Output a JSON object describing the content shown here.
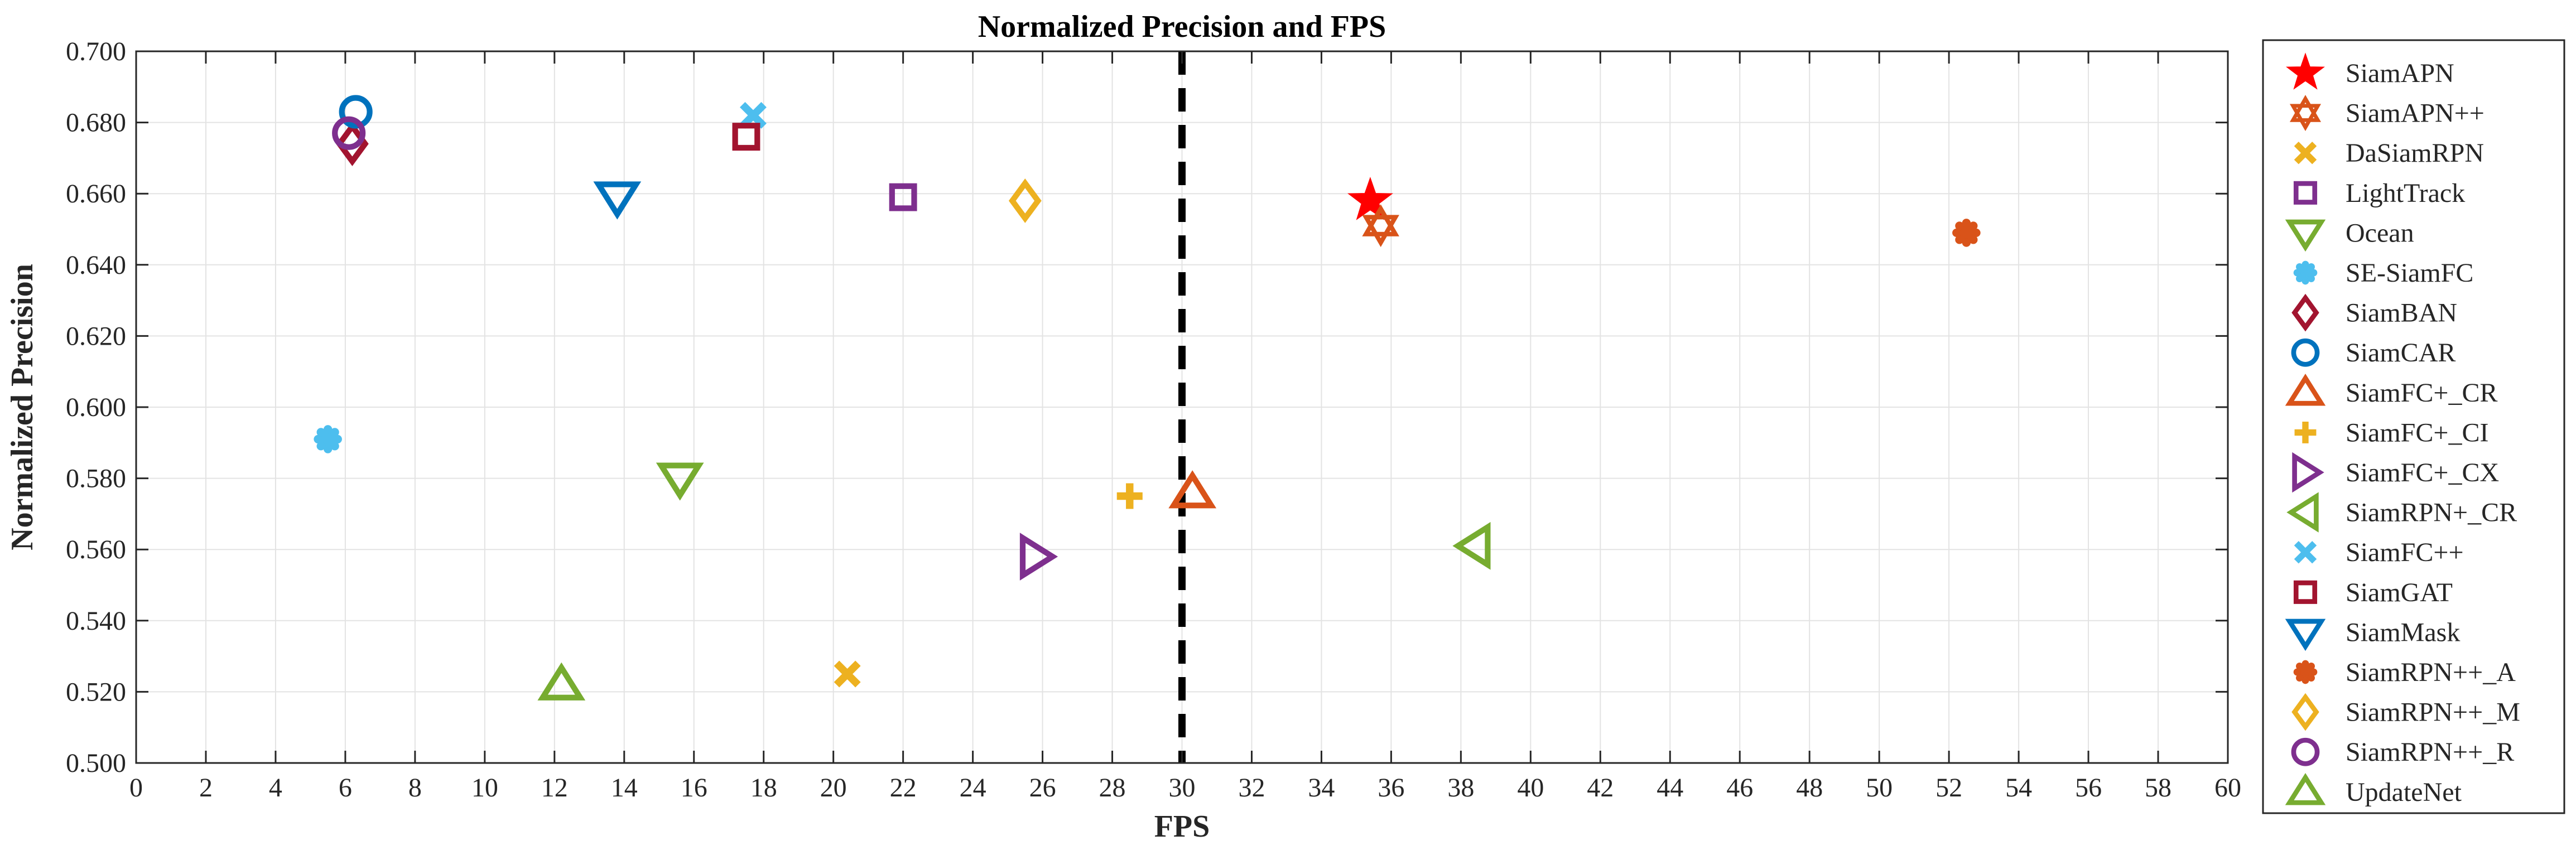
{
  "chart_data": {
    "type": "scatter",
    "title": "Normalized Precision and FPS",
    "xlabel": "FPS",
    "ylabel": "Normalized Precision",
    "xlim": [
      0,
      60
    ],
    "ylim": [
      0.5,
      0.7
    ],
    "xticks": [
      0,
      2,
      4,
      6,
      8,
      10,
      12,
      14,
      16,
      18,
      20,
      22,
      24,
      26,
      28,
      30,
      32,
      34,
      36,
      38,
      40,
      42,
      44,
      46,
      48,
      50,
      52,
      54,
      56,
      58,
      60
    ],
    "yticks": [
      {
        "value": 0.5,
        "label": "0.500"
      },
      {
        "value": 0.52,
        "label": "0.520"
      },
      {
        "value": 0.54,
        "label": "0.540"
      },
      {
        "value": 0.56,
        "label": "0.560"
      },
      {
        "value": 0.58,
        "label": "0.580"
      },
      {
        "value": 0.6,
        "label": "0.600"
      },
      {
        "value": 0.62,
        "label": "0.620"
      },
      {
        "value": 0.64,
        "label": "0.640"
      },
      {
        "value": 0.66,
        "label": "0.660"
      },
      {
        "value": 0.68,
        "label": "0.680"
      },
      {
        "value": 0.7,
        "label": "0.700"
      }
    ],
    "grid": true,
    "legend_position": "outside-right",
    "reference_line": {
      "x": 30,
      "style": "dashed",
      "color": "#000000"
    },
    "series": [
      {
        "name": "SiamAPN",
        "x": 35.4,
        "y": 0.658,
        "marker": "star",
        "color": "#ff0000"
      },
      {
        "name": "SiamAPN++",
        "x": 35.7,
        "y": 0.651,
        "marker": "hexagram",
        "color": "#d95319"
      },
      {
        "name": "DaSiamRPN",
        "x": 20.4,
        "y": 0.525,
        "marker": "x",
        "color": "#edb120"
      },
      {
        "name": "LightTrack",
        "x": 22.0,
        "y": 0.659,
        "marker": "square",
        "color": "#7e2f8e"
      },
      {
        "name": "Ocean",
        "x": 15.6,
        "y": 0.58,
        "marker": "triangle-down",
        "color": "#77ac30"
      },
      {
        "name": "SE-SiamFC",
        "x": 5.5,
        "y": 0.591,
        "marker": "asterisk",
        "color": "#4dbeee"
      },
      {
        "name": "SiamBAN",
        "x": 6.2,
        "y": 0.674,
        "marker": "diamond",
        "color": "#a2142f"
      },
      {
        "name": "SiamCAR",
        "x": 6.3,
        "y": 0.683,
        "marker": "circle",
        "color": "#0072bd"
      },
      {
        "name": "SiamFC+_CR",
        "x": 30.3,
        "y": 0.576,
        "marker": "triangle-up",
        "color": "#d95319"
      },
      {
        "name": "SiamFC+_CI",
        "x": 28.5,
        "y": 0.575,
        "marker": "plus",
        "color": "#edb120"
      },
      {
        "name": "SiamFC+_CX",
        "x": 25.8,
        "y": 0.558,
        "marker": "triangle-right",
        "color": "#7e2f8e"
      },
      {
        "name": "SiamRPN+_CR",
        "x": 38.4,
        "y": 0.561,
        "marker": "triangle-left",
        "color": "#77ac30"
      },
      {
        "name": "SiamFC++",
        "x": 17.7,
        "y": 0.682,
        "marker": "x",
        "color": "#4dbeee"
      },
      {
        "name": "SiamGAT",
        "x": 17.5,
        "y": 0.676,
        "marker": "square",
        "color": "#a2142f"
      },
      {
        "name": "SiamMask",
        "x": 13.8,
        "y": 0.659,
        "marker": "triangle-down",
        "color": "#0072bd"
      },
      {
        "name": "SiamRPN++_A",
        "x": 52.5,
        "y": 0.649,
        "marker": "asterisk",
        "color": "#d95319"
      },
      {
        "name": "SiamRPN++_M",
        "x": 25.5,
        "y": 0.658,
        "marker": "diamond",
        "color": "#edb120"
      },
      {
        "name": "SiamRPN++_R",
        "x": 6.1,
        "y": 0.677,
        "marker": "circle",
        "color": "#7e2f8e"
      },
      {
        "name": "UpdateNet",
        "x": 12.2,
        "y": 0.522,
        "marker": "triangle-up",
        "color": "#77ac30"
      }
    ]
  }
}
